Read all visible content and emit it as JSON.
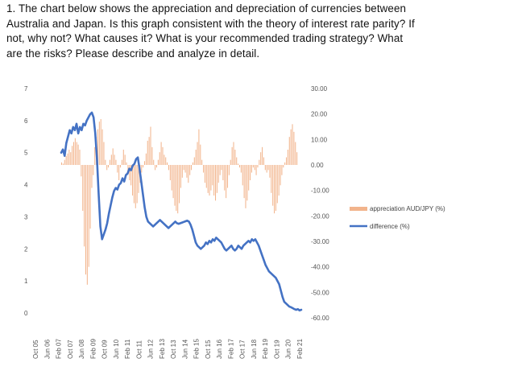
{
  "question": {
    "lines": [
      "1. The chart below shows the appreciation and depreciation of currencies between",
      "Australia and Japan. Is this graph consistent with the theory of interest rate parity? If",
      "not, why not? What causes it? What is your recommended trading strategy? What",
      "are the risks? Please describe and analyze in detail."
    ]
  },
  "chart_data": {
    "type": "bar+line",
    "title": "",
    "left_axis": {
      "ticks": [
        "0",
        "1",
        "2",
        "3",
        "4",
        "5",
        "6",
        "7"
      ],
      "range": [
        0,
        7
      ]
    },
    "right_axis": {
      "ticks": [
        "30.00",
        "20.00",
        "10.00",
        "0.00",
        "-10.00",
        "-20.00",
        "-30.00",
        "-40.00",
        "-50.00",
        "-60.00"
      ],
      "range": [
        -62,
        32
      ]
    },
    "x_ticks": [
      "Oct 05",
      "Jun 06",
      "Feb 07",
      "Oct 07",
      "Jun 08",
      "Feb 09",
      "Oct 09",
      "Jun 10",
      "Feb 11",
      "Oct 11",
      "Jun 12",
      "Feb 13",
      "Oct 13",
      "Jun 14",
      "Feb 15",
      "Oct 15",
      "Jun 16",
      "Feb 17",
      "Oct 17",
      "Jun 18",
      "Feb 19",
      "Oct 19",
      "Jun 20",
      "Feb 21"
    ],
    "series": [
      {
        "name": "appreciation AUD/JPY (%)",
        "axis": "right",
        "kind": "bar",
        "color": "#f2b48c",
        "values": [
          1.0,
          0.5,
          2.0,
          3.5,
          4.5,
          6.0,
          5.0,
          7.5,
          9.0,
          10.5,
          9.0,
          8.0,
          6.0,
          -4.5,
          -18.0,
          -32.0,
          -43.0,
          -47.0,
          -40.0,
          -25.0,
          -9.0,
          -4.0,
          7.0,
          11.0,
          14.0,
          17.0,
          18.0,
          14.0,
          9.0,
          2.0,
          -2.0,
          -1.0,
          2.0,
          4.0,
          6.5,
          4.0,
          2.0,
          -3.0,
          -6.0,
          -1.0,
          2.0,
          6.0,
          4.0,
          1.0,
          -3.0,
          -6.0,
          -8.0,
          -12.0,
          -15.0,
          -17.0,
          -15.0,
          -11.0,
          -7.0,
          -3.0,
          -1.0,
          1.5,
          4.5,
          9.5,
          11.0,
          15.0,
          7.0,
          2.0,
          -2.0,
          -1.0,
          2.0,
          5.0,
          9.0,
          7.0,
          4.0,
          3.0,
          1.0,
          -2.0,
          -6.0,
          -10.0,
          -13.0,
          -16.0,
          -18.0,
          -19.0,
          -15.0,
          -9.0,
          -5.0,
          -2.0,
          -3.0,
          -5.0,
          -7.0,
          -4.0,
          -2.0,
          1.0,
          3.0,
          6.0,
          9.0,
          14.0,
          8.0,
          2.0,
          -3.0,
          -7.0,
          -9.0,
          -11.0,
          -12.0,
          -10.0,
          -8.0,
          -12.0,
          -14.0,
          -11.0,
          -7.0,
          -4.0,
          -2.0,
          -6.0,
          -10.0,
          -13.0,
          -9.0,
          -4.0,
          2.0,
          7.0,
          9.0,
          6.0,
          3.0,
          0.5,
          -1.0,
          -3.0,
          -8.0,
          -13.0,
          -17.0,
          -14.0,
          -10.0,
          -6.0,
          -3.0,
          -1.0,
          -2.0,
          -4.0,
          -1.0,
          2.0,
          5.0,
          7.0,
          3.0,
          -2.0,
          -3.0,
          -2.0,
          -5.0,
          -11.0,
          -16.0,
          -19.0,
          -18.0,
          -15.0,
          -12.0,
          -8.0,
          -4.0,
          -1.0,
          1.0,
          3.0,
          6.0,
          11.0,
          14.0,
          16.0,
          13.0,
          9.0,
          5.0
        ]
      },
      {
        "name": "difference (%)",
        "axis": "left",
        "kind": "line",
        "color": "#4472c4",
        "values": [
          5.0,
          5.1,
          4.9,
          5.3,
          5.5,
          5.7,
          5.6,
          5.8,
          5.7,
          5.9,
          5.6,
          5.8,
          5.7,
          5.9,
          5.85,
          6.0,
          6.1,
          6.2,
          6.25,
          6.1,
          5.6,
          4.8,
          3.7,
          2.7,
          2.3,
          2.45,
          2.6,
          2.8,
          3.1,
          3.35,
          3.6,
          3.8,
          3.9,
          3.85,
          4.0,
          4.05,
          4.2,
          4.1,
          4.3,
          4.35,
          4.5,
          4.45,
          4.6,
          4.65,
          4.8,
          4.85,
          4.5,
          4.1,
          3.7,
          3.3,
          3.0,
          2.85,
          2.8,
          2.75,
          2.7,
          2.75,
          2.8,
          2.85,
          2.9,
          2.85,
          2.8,
          2.75,
          2.7,
          2.65,
          2.7,
          2.75,
          2.8,
          2.85,
          2.8,
          2.78,
          2.8,
          2.82,
          2.84,
          2.86,
          2.88,
          2.85,
          2.75,
          2.6,
          2.4,
          2.2,
          2.1,
          2.05,
          2.0,
          2.05,
          2.1,
          2.2,
          2.15,
          2.25,
          2.2,
          2.3,
          2.25,
          2.35,
          2.3,
          2.25,
          2.2,
          2.1,
          2.0,
          1.95,
          2.0,
          2.05,
          2.1,
          2.0,
          1.95,
          2.0,
          2.1,
          2.05,
          2.0,
          2.1,
          2.15,
          2.2,
          2.25,
          2.2,
          2.3,
          2.25,
          2.3,
          2.2,
          2.1,
          1.95,
          1.8,
          1.65,
          1.5,
          1.4,
          1.3,
          1.25,
          1.2,
          1.15,
          1.1,
          1.0,
          0.9,
          0.7,
          0.5,
          0.35,
          0.3,
          0.25,
          0.2,
          0.18,
          0.15,
          0.12,
          0.1,
          0.12,
          0.08,
          0.1
        ]
      }
    ],
    "legend": {
      "placement": "right"
    },
    "grid": false
  }
}
